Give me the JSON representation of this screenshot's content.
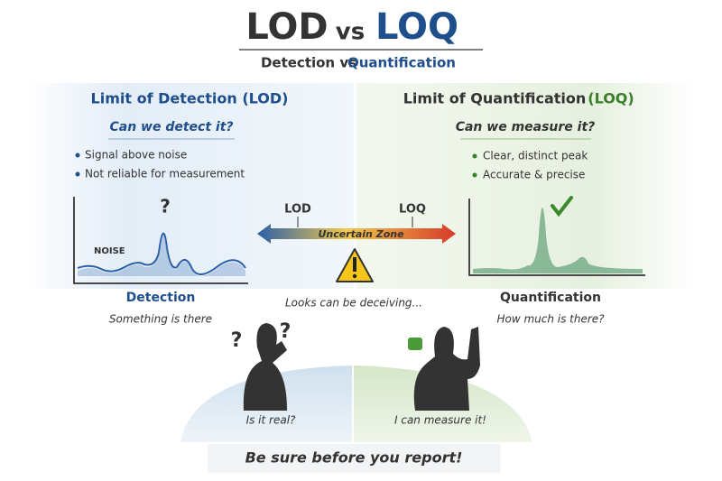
{
  "header": {
    "title_left": "LOD",
    "title_mid": "vs",
    "title_right": "LOQ",
    "subtitle_left": "Detection vs",
    "subtitle_right": "Quantification"
  },
  "lod_panel": {
    "heading": "Limit of Detection (LOD)",
    "question": "Can we detect it?",
    "bullets": [
      "Signal above noise",
      "Not reliable for measurement"
    ],
    "graph_noise_label": "NOISE",
    "graph_mark": "?",
    "caption": "Detection",
    "caption_sub": "Something is there"
  },
  "loq_panel": {
    "heading_left": "Limit of Quantification",
    "heading_right": "(LOQ)",
    "question": "Can we measure it?",
    "bullets": [
      "Clear, distinct peak",
      "Accurate & precise"
    ],
    "caption": "Quantification",
    "caption_sub": "How much is there?"
  },
  "scale": {
    "left_label": "LOD",
    "right_label": "LOQ",
    "zone_label": "Uncertain Zone",
    "note": "Looks can be deceiving..."
  },
  "figures": {
    "left_marks": [
      "?",
      "?"
    ],
    "left_caption": "Is it real?",
    "right_caption": "I can measure it!"
  },
  "footer": {
    "text": "Be sure before you report!"
  }
}
